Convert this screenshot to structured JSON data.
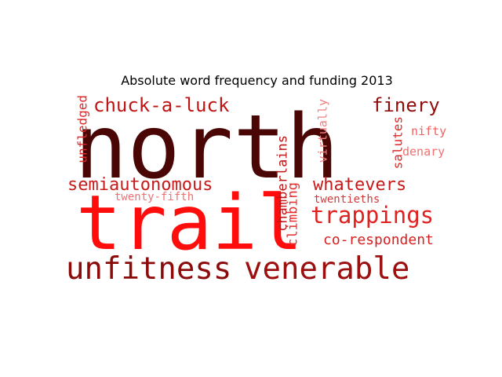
{
  "chart_data": {
    "type": "wordcloud",
    "title": "Absolute word frequency and funding 2013",
    "words": [
      {
        "text": "north",
        "weight": 100,
        "color": "#4a0505"
      },
      {
        "text": "trail",
        "weight": 95,
        "color": "#ff0d0d"
      },
      {
        "text": "unfitness",
        "weight": 38,
        "color": "#8b0b0b"
      },
      {
        "text": "venerable",
        "weight": 38,
        "color": "#9d0f0f"
      },
      {
        "text": "trappings",
        "weight": 28,
        "color": "#e12020"
      },
      {
        "text": "chuck-a-luck",
        "weight": 23,
        "color": "#bf1414"
      },
      {
        "text": "semiautonomous",
        "weight": 22,
        "color": "#c71a1a"
      },
      {
        "text": "whatevers",
        "weight": 22,
        "color": "#c71a1a"
      },
      {
        "text": "finery",
        "weight": 22,
        "color": "#8f0c0c"
      },
      {
        "text": "co-respondent",
        "weight": 17,
        "color": "#d62020"
      },
      {
        "text": "chamberlains",
        "weight": 14,
        "color": "#c01414"
      },
      {
        "text": "climbing",
        "weight": 14,
        "color": "#e62a2a"
      },
      {
        "text": "unfledged",
        "weight": 14,
        "color": "#dc2a2a"
      },
      {
        "text": "salutes",
        "weight": 14,
        "color": "#dc2a2a"
      },
      {
        "text": "virtually",
        "weight": 14,
        "color": "#f08080"
      },
      {
        "text": "nifty",
        "weight": 14,
        "color": "#f06060"
      },
      {
        "text": "denary",
        "weight": 13,
        "color": "#f07070"
      },
      {
        "text": "twentieths",
        "weight": 13,
        "color": "#d43a3a"
      },
      {
        "text": "twenty-fifth",
        "weight": 13,
        "color": "#f07070"
      }
    ]
  }
}
